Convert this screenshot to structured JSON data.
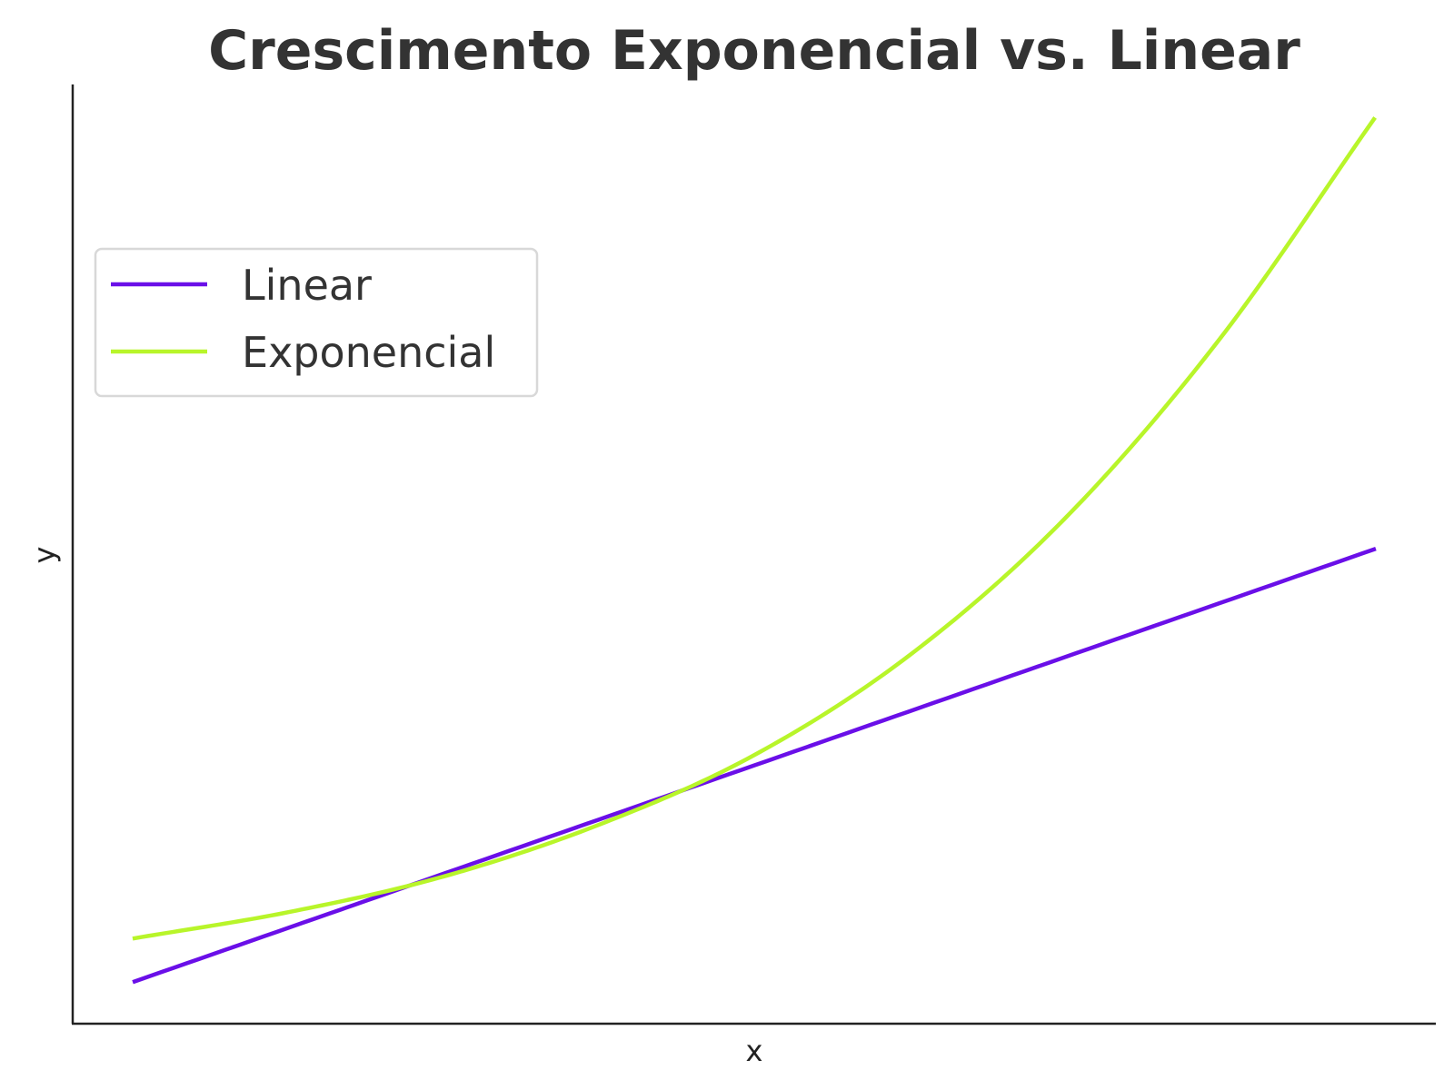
{
  "chart_data": {
    "type": "line",
    "title": "Crescimento Exponencial vs. Linear",
    "xlabel": "x",
    "ylabel": "y",
    "x_ticks_shown": false,
    "y_ticks_shown": false,
    "grid": false,
    "xlim": [
      -0.1,
      2.1
    ],
    "ylim": [
      0,
      10
    ],
    "legend_location": "upper-left",
    "series": [
      {
        "name": "Linear",
        "color": "#6a0fe8",
        "x": [
          0,
          0.5,
          1,
          1.5,
          2
        ],
        "y": [
          0.45,
          1.6,
          2.75,
          3.9,
          5.05
        ]
      },
      {
        "name": "Exponencial",
        "color": "#b8f52a",
        "x": [
          0,
          0.25,
          0.5,
          0.75,
          1,
          1.25,
          1.5,
          1.75,
          2
        ],
        "y": [
          0.91,
          1.19,
          1.57,
          2.12,
          2.86,
          3.92,
          5.37,
          7.28,
          9.63
        ]
      }
    ]
  }
}
